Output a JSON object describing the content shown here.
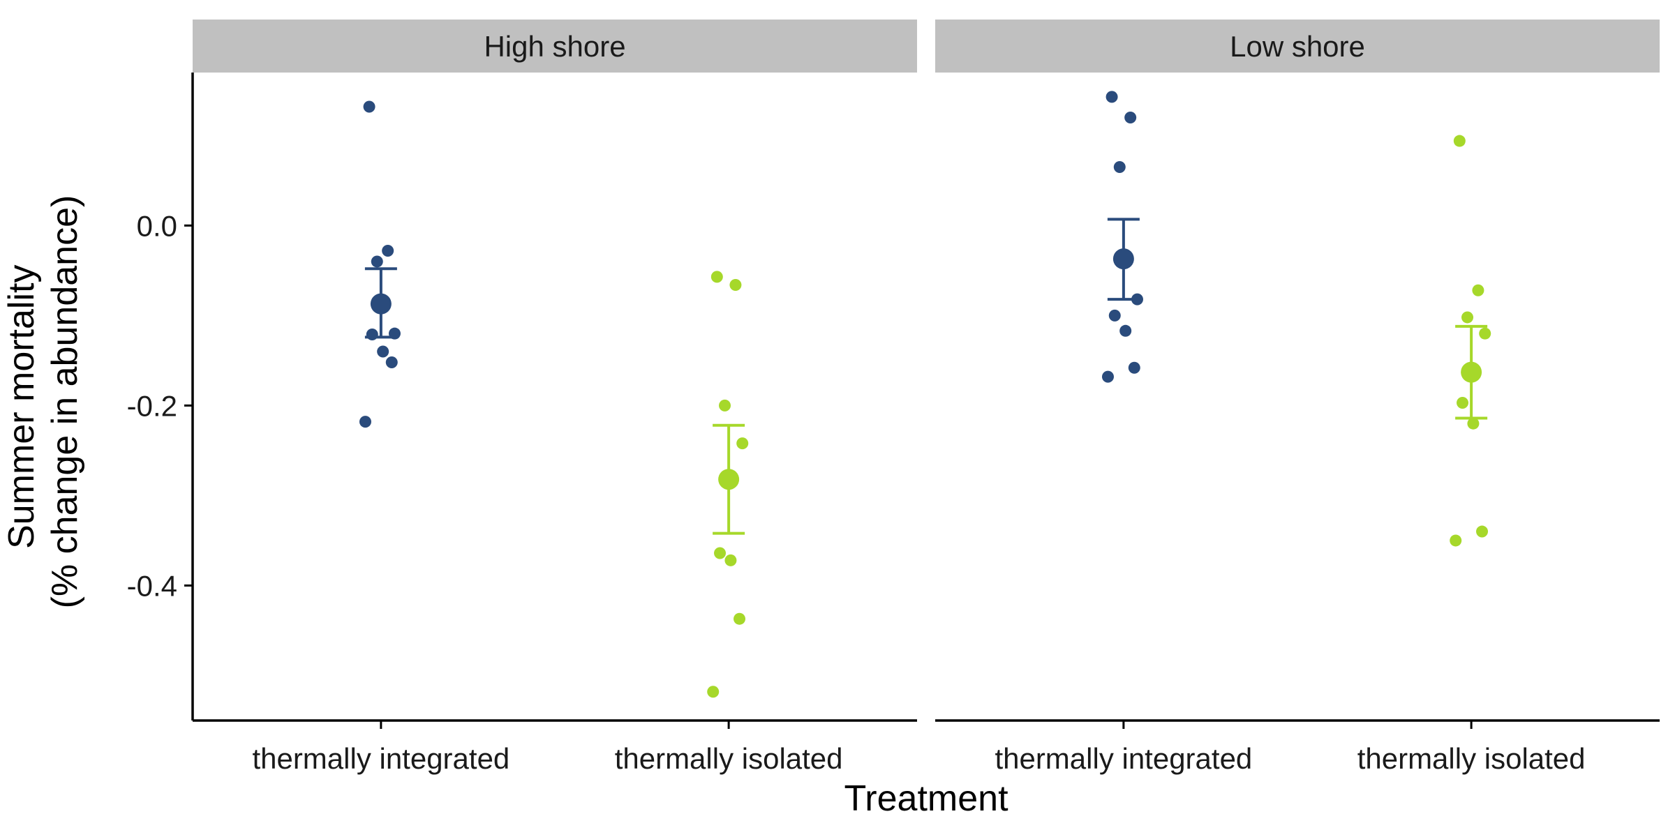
{
  "chart_data": {
    "type": "scatter",
    "xlabel": "Treatment",
    "ylabel_lines": [
      "Summer mortality",
      "(% change in abundance)"
    ],
    "ylim": [
      -0.55,
      0.17
    ],
    "yticks": [
      0.0,
      -0.2,
      -0.4
    ],
    "ytick_labels": [
      "0.0",
      "-0.2",
      "-0.4"
    ],
    "categories": [
      "thermally integrated",
      "thermally isolated"
    ],
    "colors": {
      "thermally integrated": "#2a4b7c",
      "thermally isolated": "#a6d82a"
    },
    "grid": false,
    "legend": "none",
    "panels": [
      {
        "strip": "High shore",
        "groups": [
          {
            "treatment": "thermally integrated",
            "points": [
              0.132,
              -0.028,
              -0.04,
              -0.12,
              -0.121,
              -0.14,
              -0.152,
              -0.218
            ],
            "mean": -0.087,
            "se_low": -0.124,
            "se_high": -0.048
          },
          {
            "treatment": "thermally isolated",
            "points": [
              -0.057,
              -0.066,
              -0.2,
              -0.242,
              -0.364,
              -0.372,
              -0.437,
              -0.518
            ],
            "mean": -0.282,
            "se_low": -0.342,
            "se_high": -0.222
          }
        ]
      },
      {
        "strip": "Low shore",
        "groups": [
          {
            "treatment": "thermally integrated",
            "points": [
              0.143,
              0.12,
              0.065,
              -0.082,
              -0.1,
              -0.117,
              -0.158,
              -0.168
            ],
            "mean": -0.037,
            "se_low": -0.082,
            "se_high": 0.007
          },
          {
            "treatment": "thermally isolated",
            "points": [
              0.094,
              -0.072,
              -0.102,
              -0.12,
              -0.197,
              -0.22,
              -0.34,
              -0.35
            ],
            "mean": -0.163,
            "se_low": -0.214,
            "se_high": -0.112
          }
        ]
      }
    ]
  }
}
